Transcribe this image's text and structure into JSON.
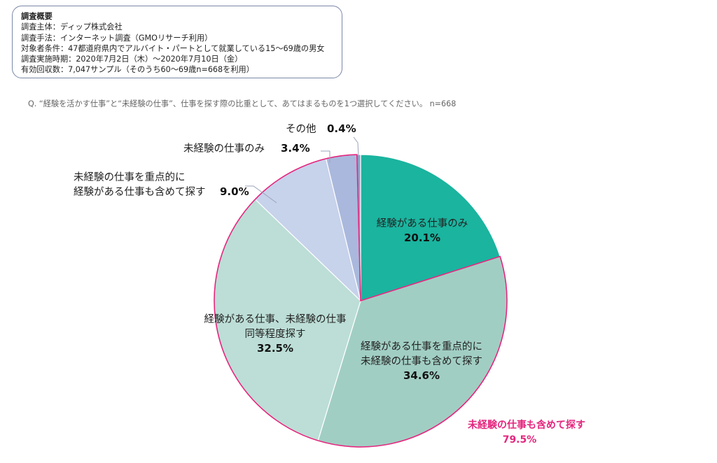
{
  "survey": {
    "title": "調査概要",
    "lines": [
      "調査主体：ディップ株式会社",
      "調査手法：インターネット調査（GMOリサーチ利用）",
      "対象者条件：47都道府県内でアルバイト・パートとして就業している15～69歳の男女",
      "調査実施時期：2020年7月2日（木）～2020年7月10日（金）",
      "有効回収数：7,047サンプル（そのうち60～69歳n=668を利用）"
    ]
  },
  "question": "Q. “経験を活かす仕事”と“未経験の仕事”、仕事を探す際の比重として、あてはまるものを1つ選択してください。 n=668",
  "chart_data": {
    "type": "pie",
    "start": "12 o'clock, clockwise",
    "slices": [
      {
        "label_lines": [
          "経験がある仕事のみ"
        ],
        "value": 20.1,
        "display": "20.1%",
        "color": "#1ab49f"
      },
      {
        "label_lines": [
          "経験がある仕事を重点的に",
          "未経験の仕事も含めて探す"
        ],
        "value": 34.6,
        "display": "34.6%",
        "color": "#a1cec3"
      },
      {
        "label_lines": [
          "経験がある仕事、未経験の仕事",
          "同等程度探す"
        ],
        "value": 32.5,
        "display": "32.5%",
        "color": "#bcded6"
      },
      {
        "label_lines": [
          "未経験の仕事を重点的に",
          "経験がある仕事も含めて探す"
        ],
        "value": 9.0,
        "display": "9.0%",
        "color": "#c7d2eb"
      },
      {
        "label_lines": [
          "未経験の仕事のみ"
        ],
        "value": 3.4,
        "display": "3.4%",
        "color": "#aab8dd"
      },
      {
        "label_lines": [
          "その他"
        ],
        "value": 0.4,
        "display": "0.4%",
        "color": "#8e9ec9"
      }
    ],
    "highlight": {
      "label": "未経験の仕事も含めて探す",
      "value": 79.5,
      "display": "79.5%",
      "slice_indices": [
        1,
        2,
        3,
        4
      ],
      "color": "#e4267e"
    }
  }
}
